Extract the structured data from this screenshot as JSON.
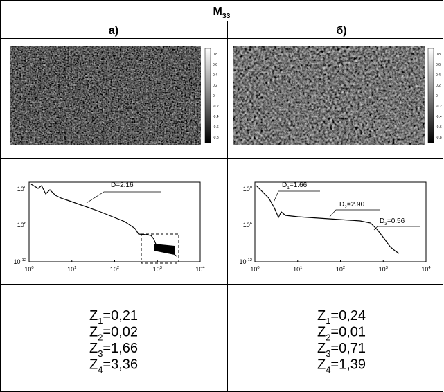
{
  "header": {
    "symbol": "M",
    "index": "33"
  },
  "columns": [
    {
      "label": "а)",
      "colorbar_ticks": [
        "0.8",
        "0.6",
        "0.4",
        "0.2",
        "0",
        "-0.2",
        "-0.4",
        "-0.6",
        "-0.8"
      ],
      "plot": {
        "yticks": [
          {
            "base": "10",
            "exp": "0"
          },
          {
            "base": "10",
            "exp": "6"
          },
          {
            "base": "10",
            "exp": "-12"
          }
        ],
        "xticks": [
          {
            "base": "10",
            "exp": "0"
          },
          {
            "base": "10",
            "exp": "1"
          },
          {
            "base": "10",
            "exp": "2"
          },
          {
            "base": "10",
            "exp": "3"
          },
          {
            "base": "10",
            "exp": "4"
          }
        ],
        "annotations": [
          {
            "symbol": "D",
            "text": "=2.16"
          }
        ]
      },
      "z": [
        {
          "symbol": "Z",
          "index": "1",
          "text": "=0,21"
        },
        {
          "symbol": "Z",
          "index": "2",
          "text": "=0,02"
        },
        {
          "symbol": "Z",
          "index": "3",
          "text": "=1,66"
        },
        {
          "symbol": "Z",
          "index": "4",
          "text": "=3,36"
        }
      ]
    },
    {
      "label": "б)",
      "colorbar_ticks": [
        "0.8",
        "0.6",
        "0.4",
        "0.2",
        "0",
        "-0.2",
        "-0.4",
        "-0.6",
        "-0.8"
      ],
      "plot": {
        "yticks": [
          {
            "base": "10",
            "exp": "0"
          },
          {
            "base": "10",
            "exp": "6"
          },
          {
            "base": "10",
            "exp": "-12"
          }
        ],
        "xticks": [
          {
            "base": "10",
            "exp": "0"
          },
          {
            "base": "10",
            "exp": "1"
          },
          {
            "base": "10",
            "exp": "2"
          },
          {
            "base": "10",
            "exp": "3"
          },
          {
            "base": "10",
            "exp": "4"
          }
        ],
        "annotations": [
          {
            "symbol": "D",
            "index": "1",
            "text": "=1.66"
          },
          {
            "symbol": "D",
            "index": "2",
            "text": "=2.90"
          },
          {
            "symbol": "D",
            "index": "3",
            "text": "=0.56"
          }
        ]
      },
      "z": [
        {
          "symbol": "Z",
          "index": "1",
          "text": "=0,24"
        },
        {
          "symbol": "Z",
          "index": "2",
          "text": "=0,01"
        },
        {
          "symbol": "Z",
          "index": "3",
          "text": "=0,71"
        },
        {
          "symbol": "Z",
          "index": "4",
          "text": "=1,39"
        }
      ]
    }
  ]
}
